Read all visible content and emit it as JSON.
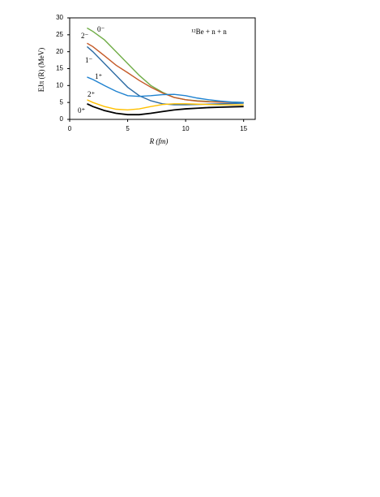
{
  "chart_data": {
    "type": "line",
    "x_label": "R (fm)",
    "y_label": "EJπ (R) (MeV)",
    "annotation": "¹²Be + n + n",
    "x": [
      1.5,
      2,
      3,
      4,
      5,
      6,
      7,
      8,
      9,
      10,
      11,
      12,
      13,
      14,
      15
    ],
    "series": [
      {
        "name": "0⁻",
        "color": "#70ad47",
        "values": [
          27,
          26,
          23.5,
          20,
          16.5,
          13,
          10,
          8,
          6.5,
          5.8,
          5.5,
          5.3,
          5.2,
          5.1,
          5.0
        ]
      },
      {
        "name": "2⁻",
        "color": "#c55a28",
        "values": [
          22.5,
          21.5,
          18.8,
          16,
          13.8,
          11.5,
          9.5,
          7.8,
          6.5,
          5.8,
          5.4,
          5.2,
          5.1,
          5.0,
          4.9
        ]
      },
      {
        "name": "1⁻",
        "color": "#2e6ca4",
        "values": [
          21.5,
          20,
          16.5,
          13,
          9.5,
          7,
          5.5,
          4.6,
          4.3,
          4.3,
          4.4,
          4.5,
          4.6,
          4.7,
          4.8
        ]
      },
      {
        "name": "1⁺",
        "color": "#1f82d0",
        "values": [
          12.5,
          11.8,
          10,
          8.3,
          7,
          6.8,
          7,
          7.3,
          7.4,
          7,
          6.3,
          5.8,
          5.4,
          5.1,
          5.0
        ]
      },
      {
        "name": "2⁺",
        "color": "#ffc000",
        "values": [
          5.8,
          5,
          3.8,
          3,
          2.8,
          3.1,
          3.8,
          4.4,
          4.6,
          4.6,
          4.5,
          4.4,
          4.3,
          4.3,
          4.3
        ]
      },
      {
        "name": "0⁺",
        "color": "#000000",
        "values": [
          4.6,
          3.8,
          2.6,
          1.8,
          1.4,
          1.4,
          1.8,
          2.3,
          2.8,
          3.1,
          3.3,
          3.5,
          3.6,
          3.7,
          3.8
        ]
      }
    ],
    "xlim": [
      0,
      16
    ],
    "ylim": [
      0,
      30
    ],
    "xticks": [
      0,
      5,
      10,
      15
    ],
    "yticks": [
      0,
      5,
      10,
      15,
      20,
      25,
      30
    ]
  }
}
